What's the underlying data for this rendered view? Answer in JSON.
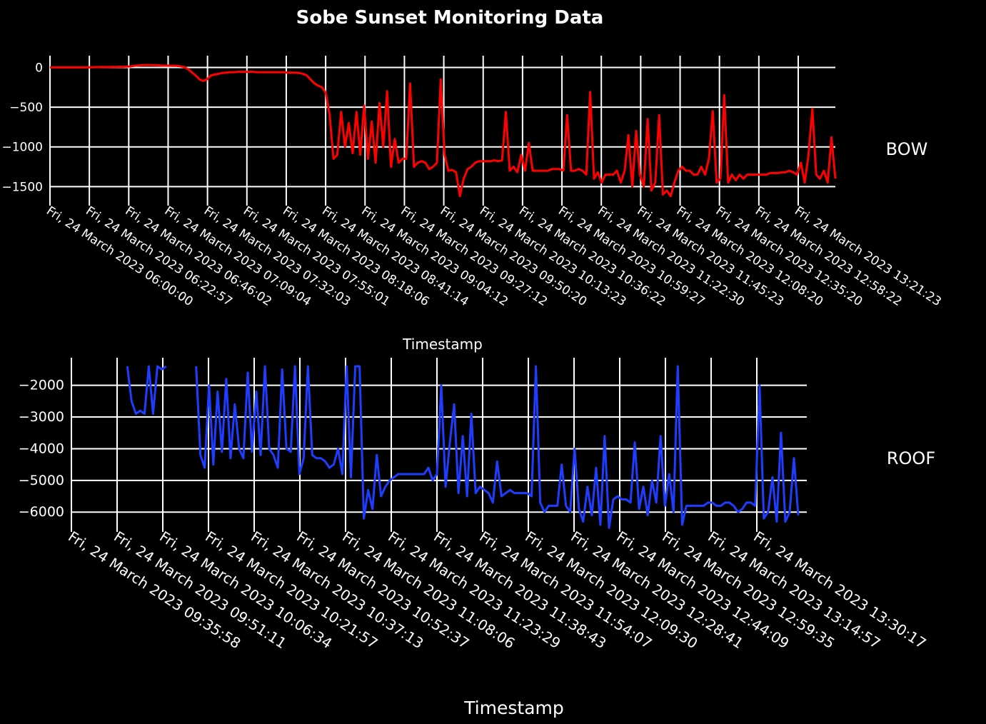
{
  "title": "Sobe Sunset Monitoring Data",
  "colors": {
    "background": "#000000",
    "grid": "#ffffff",
    "bow_series": "#ff0000",
    "roof_series": "#1f3dff",
    "text": "#ffffff"
  },
  "chart_data": [
    {
      "type": "line",
      "series_label": "BOW",
      "xlabel": "Timestamp",
      "ylabel": "",
      "ylim": [
        -1650,
        40
      ],
      "yticks": [
        0,
        -500,
        -1000,
        -1500
      ],
      "ytick_labels": [
        "0",
        "−500",
        "−1000",
        "−1500"
      ],
      "x_tick_labels": [
        "Fri, 24 March 2023 06:00:00",
        "Fri, 24 March 2023 06:22:57",
        "Fri, 24 March 2023 06:46:02",
        "Fri, 24 March 2023 07:09:04",
        "Fri, 24 March 2023 07:32:03",
        "Fri, 24 March 2023 07:55:01",
        "Fri, 24 March 2023 08:18:06",
        "Fri, 24 March 2023 08:41:14",
        "Fri, 24 March 2023 09:04:12",
        "Fri, 24 March 2023 09:27:12",
        "Fri, 24 March 2023 09:50:20",
        "Fri, 24 March 2023 10:13:23",
        "Fri, 24 March 2023 10:36:22",
        "Fri, 24 March 2023 10:59:27",
        "Fri, 24 March 2023 11:22:30",
        "Fri, 24 March 2023 11:45:23",
        "Fri, 24 March 2023 12:08:20",
        "Fri, 24 March 2023 12:35:20",
        "Fri, 24 March 2023 12:58:22",
        "Fri, 24 March 2023 13:21:23"
      ],
      "grid": true,
      "color": "#ff0000",
      "y": [
        0,
        0,
        0,
        0,
        0,
        0,
        0,
        0,
        0,
        0,
        2,
        2,
        4,
        4,
        6,
        5,
        6,
        6,
        8,
        8,
        10,
        12,
        20,
        25,
        28,
        30,
        30,
        28,
        28,
        25,
        22,
        22,
        20,
        20,
        15,
        5,
        -20,
        -60,
        -100,
        -150,
        -170,
        -150,
        -100,
        -90,
        -80,
        -70,
        -65,
        -60,
        -60,
        -55,
        -55,
        -55,
        -55,
        -55,
        -60,
        -60,
        -60,
        -60,
        -60,
        -60,
        -60,
        -60,
        -65,
        -65,
        -65,
        -70,
        -80,
        -100,
        -150,
        -200,
        -230,
        -250,
        -320,
        -600,
        -1150,
        -1100,
        -560,
        -1000,
        -700,
        -1080,
        -560,
        -1100,
        -480,
        -1150,
        -680,
        -1200,
        -450,
        -1000,
        -300,
        -1250,
        -900,
        -1200,
        -1150,
        -1150,
        -200,
        -1250,
        -1200,
        -1180,
        -1200,
        -1280,
        -1250,
        -1200,
        -150,
        -1100,
        -1300,
        -1290,
        -1320,
        -1620,
        -1400,
        -1280,
        -1250,
        -1200,
        -1180,
        -1180,
        -1180,
        -1180,
        -1170,
        -1180,
        -1170,
        -560,
        -1300,
        -1250,
        -1320,
        -1100,
        -1300,
        -950,
        -1300,
        -1300,
        -1300,
        -1300,
        -1300,
        -1280,
        -1280,
        -1280,
        -1300,
        -600,
        -1300,
        -1300,
        -1280,
        -1300,
        -1350,
        -310,
        -1400,
        -1320,
        -1450,
        -1350,
        -1350,
        -1350,
        -1300,
        -1450,
        -1300,
        -850,
        -1500,
        -800,
        -1350,
        -1500,
        -650,
        -1550,
        -1450,
        -600,
        -1600,
        -1550,
        -1620,
        -1450,
        -1300,
        -1250,
        -1300,
        -1300,
        -1350,
        -1350,
        -1250,
        -1350,
        -1150,
        -550,
        -1450,
        -1400,
        -350,
        -1450,
        -1350,
        -1420,
        -1350,
        -1400,
        -1350,
        -1350,
        -1350,
        -1350,
        -1350,
        -1350,
        -1330,
        -1330,
        -1330,
        -1320,
        -1320,
        -1300,
        -1320,
        -1350,
        -1200,
        -1450,
        -1100,
        -520,
        -1350,
        -1400,
        -1300,
        -1450,
        -880,
        -1400
      ]
    },
    {
      "type": "line",
      "series_label": "ROOF",
      "xlabel": "Timestamp",
      "ylabel": "",
      "ylim": [
        -6400,
        -1400
      ],
      "yticks": [
        -2000,
        -3000,
        -4000,
        -5000,
        -6000
      ],
      "ytick_labels": [
        "−2000",
        "−3000",
        "−4000",
        "−5000",
        "−6000"
      ],
      "x_tick_labels": [
        "Fri, 24 March 2023 09:35:58",
        "Fri, 24 March 2023 09:51:11",
        "Fri, 24 March 2023 10:06:34",
        "Fri, 24 March 2023 10:21:57",
        "Fri, 24 March 2023 10:37:13",
        "Fri, 24 March 2023 10:52:37",
        "Fri, 24 March 2023 11:08:06",
        "Fri, 24 March 2023 11:23:29",
        "Fri, 24 March 2023 11:38:43",
        "Fri, 24 March 2023 11:54:07",
        "Fri, 24 March 2023 12:09:30",
        "Fri, 24 March 2023 12:28:41",
        "Fri, 24 March 2023 12:44:09",
        "Fri, 24 March 2023 12:59:35",
        "Fri, 24 March 2023 13:14:57",
        "Fri, 24 March 2023 13:30:17"
      ],
      "grid": true,
      "color": "#1f3dff",
      "y": [
        null,
        null,
        null,
        null,
        null,
        null,
        null,
        null,
        null,
        null,
        null,
        null,
        null,
        -1400,
        -2500,
        -2900,
        -2800,
        -2900,
        -1400,
        -2900,
        -1400,
        -1500,
        -1400,
        null,
        null,
        null,
        null,
        null,
        null,
        -1400,
        -4200,
        -4600,
        -2000,
        -4500,
        -2200,
        -4100,
        -1800,
        -4300,
        -2600,
        -4000,
        -4300,
        -1600,
        -4100,
        -2200,
        -4200,
        -1400,
        -4000,
        -4200,
        -4600,
        -1500,
        -4000,
        -4100,
        -1400,
        -4800,
        -4300,
        -1400,
        -4200,
        -4300,
        -4300,
        -4400,
        -4600,
        -4500,
        -4000,
        -4800,
        -1400,
        -4900,
        -1400,
        -1400,
        -6200,
        -5300,
        -5900,
        -4200,
        -5500,
        -5200,
        -5000,
        -4900,
        -4800,
        -4800,
        -4800,
        -4800,
        -4800,
        -4800,
        -4800,
        -4600,
        -5000,
        -4800,
        -2000,
        -5200,
        -3800,
        -2600,
        -5400,
        -3600,
        -5500,
        -2900,
        -5400,
        -5200,
        -5300,
        -5400,
        -5700,
        -4400,
        -5500,
        -5400,
        -5300,
        -5400,
        -5400,
        -5400,
        -5400,
        -5500,
        -1400,
        -5700,
        -6000,
        -5800,
        -5800,
        -5800,
        -4500,
        -5800,
        -6000,
        -4000,
        -5900,
        -6300,
        -5200,
        -6100,
        -4600,
        -6400,
        -3600,
        -6500,
        -5600,
        -5500,
        -5600,
        -5600,
        -5700,
        -3800,
        -5900,
        -5200,
        -6100,
        -5000,
        -5700,
        -3600,
        -5800,
        -4800,
        -6000,
        -1400,
        -6400,
        -5800,
        -5800,
        -5800,
        -5800,
        -5800,
        -5700,
        -5700,
        -5800,
        -5800,
        -5700,
        -5700,
        -5800,
        -6000,
        -5900,
        -5700,
        -5700,
        -5800,
        -2000,
        -6200,
        -6000,
        -4900,
        -6300,
        -3500,
        -6300,
        -6000,
        -4300,
        -6100
      ]
    }
  ]
}
